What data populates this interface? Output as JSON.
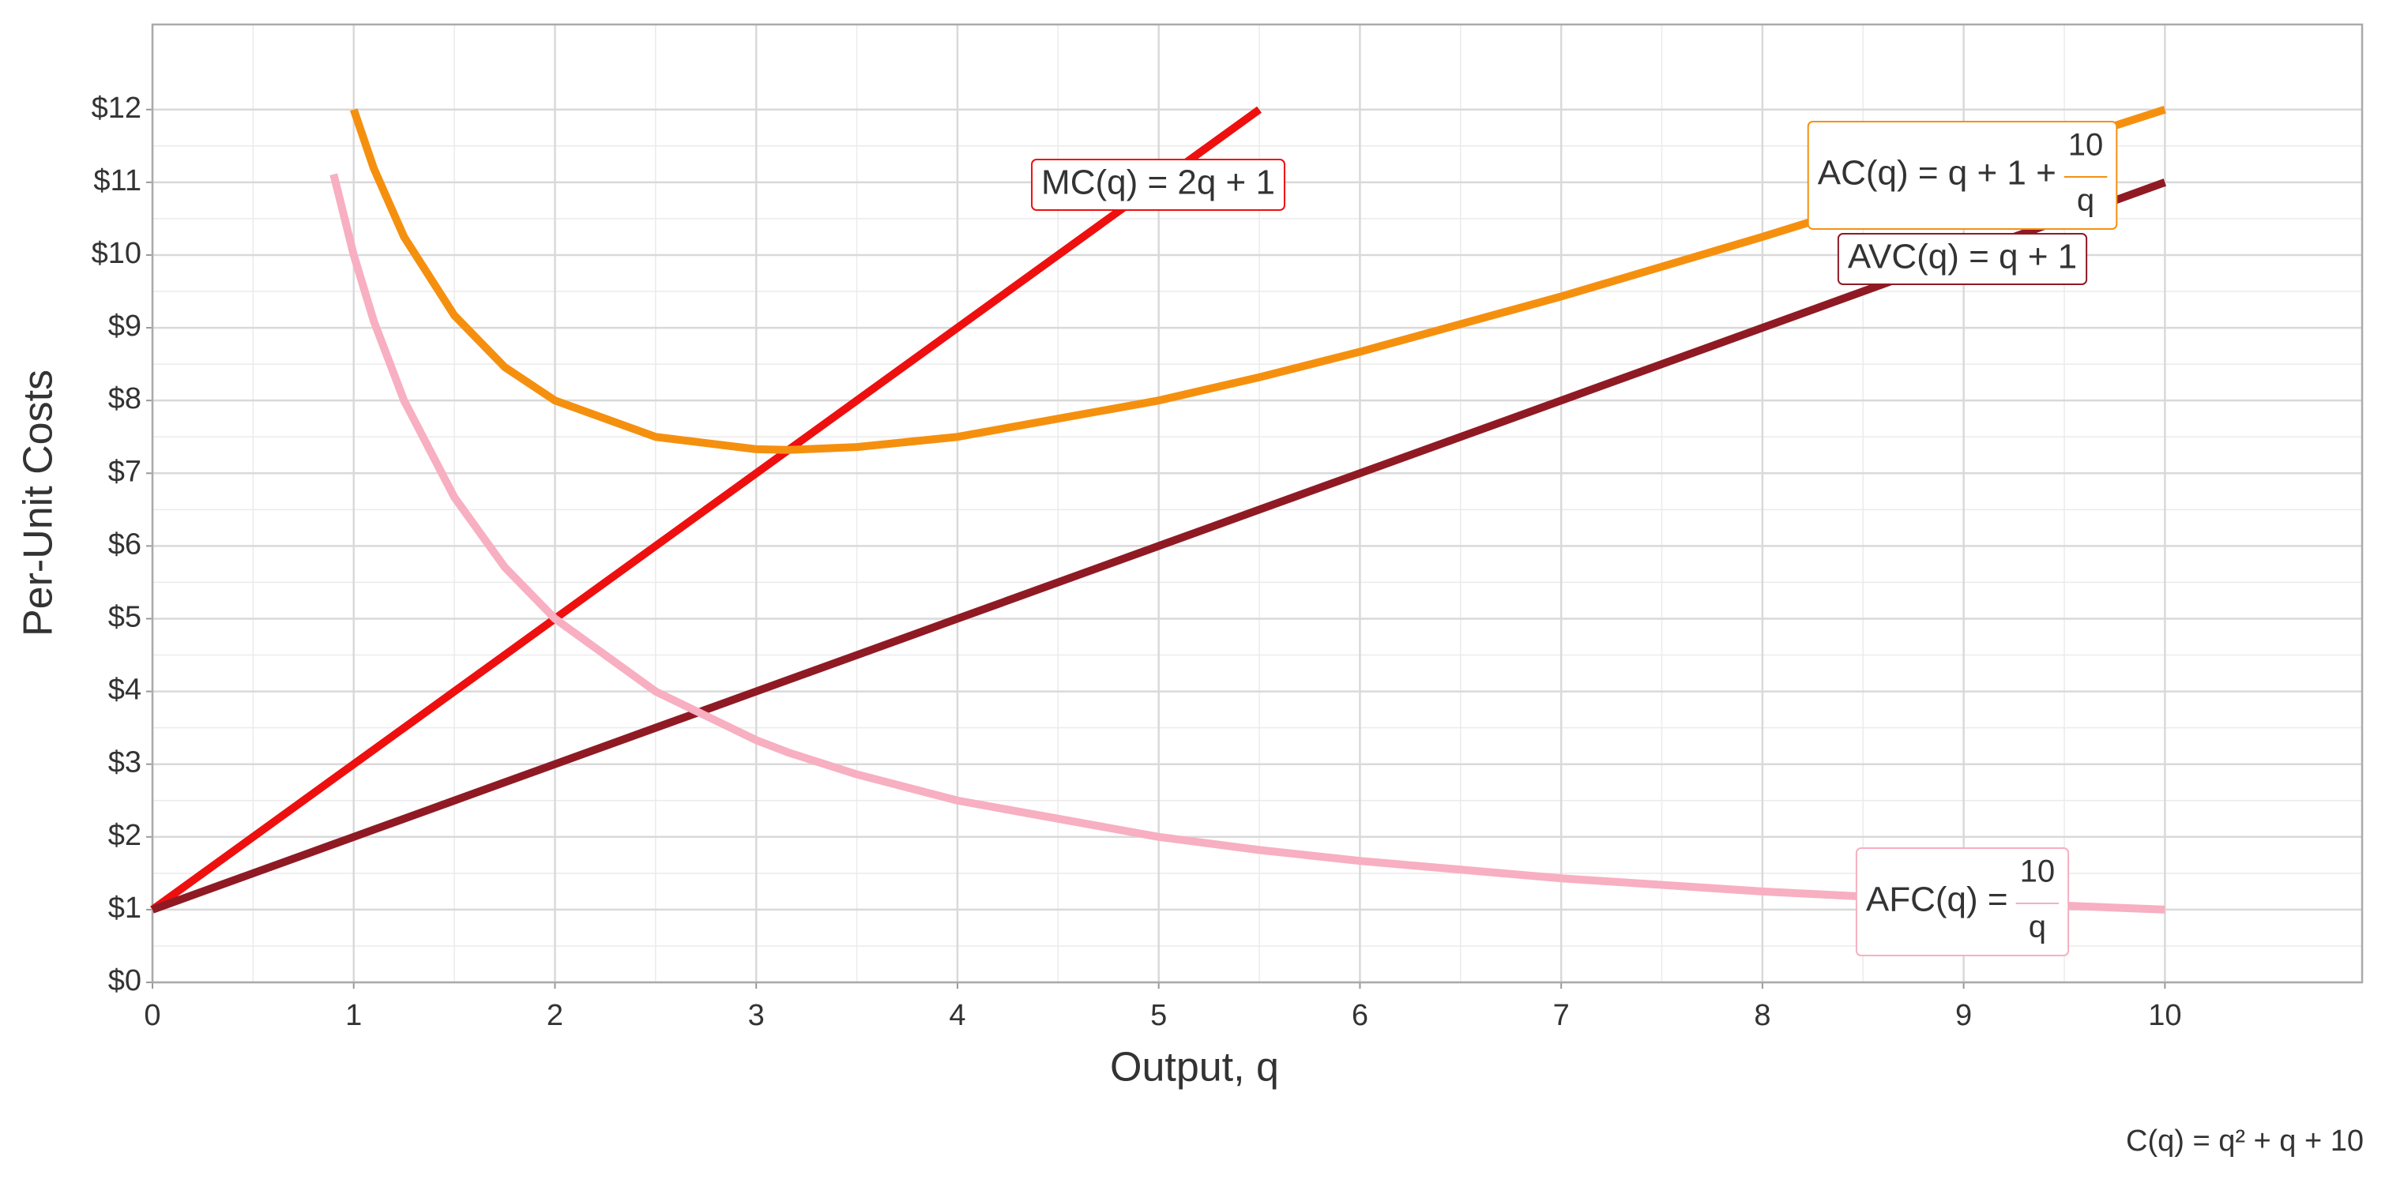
{
  "chart_data": {
    "type": "line",
    "x_label": "Output, q",
    "y_label": "Per-Unit Costs",
    "caption": "C(q) = q² + q + 10",
    "x": [
      0,
      0.9,
      1,
      1.1,
      1.25,
      1.5,
      1.75,
      2,
      2.5,
      3,
      3.16,
      3.5,
      4,
      5,
      5.5,
      6,
      7,
      8,
      9,
      10
    ],
    "series": [
      {
        "name": "MC",
        "color": "#ee0f0f",
        "values": [
          1,
          2.8,
          3,
          3.2,
          3.5,
          4,
          4.5,
          5,
          6,
          7,
          7.32,
          8,
          9,
          11,
          12,
          null,
          null,
          null,
          null,
          null
        ]
      },
      {
        "name": "AC",
        "color": "#f5900f",
        "values": [
          null,
          null,
          12,
          11.19,
          10.25,
          9.17,
          8.46,
          8,
          7.5,
          7.33,
          7.32,
          7.36,
          7.5,
          8,
          8.32,
          8.67,
          9.43,
          10.25,
          11.11,
          12
        ]
      },
      {
        "name": "AVC",
        "color": "#8f1a24",
        "values": [
          1,
          1.9,
          2,
          2.1,
          2.25,
          2.5,
          2.75,
          3,
          3.5,
          4,
          4.16,
          4.5,
          5,
          6,
          6.5,
          7,
          8,
          9,
          10,
          11
        ]
      },
      {
        "name": "AFC",
        "color": "#f7afc1",
        "values": [
          null,
          11.11,
          10,
          9.09,
          8,
          6.67,
          5.71,
          5,
          4,
          3.33,
          3.16,
          2.86,
          2.5,
          2,
          1.82,
          1.67,
          1.43,
          1.25,
          1.11,
          1
        ]
      }
    ],
    "annotations": [
      {
        "text": "MC(q) = 2q + 1"
      },
      {
        "text": "AC(q) = q + 1 +",
        "numerator": "10",
        "denominator": "q"
      },
      {
        "text": "AVC(q) = q + 1"
      },
      {
        "text": "AFC(q) =",
        "numerator": "10",
        "denominator": "q"
      }
    ],
    "xlim": [
      0,
      10.98
    ],
    "ylim": [
      0,
      13.17
    ],
    "xticks": [
      0,
      1,
      2,
      3,
      4,
      5,
      6,
      7,
      8,
      9,
      10
    ],
    "yticks": [
      {
        "value": 0,
        "label": "$0"
      },
      {
        "value": 1,
        "label": "$1"
      },
      {
        "value": 2,
        "label": "$2"
      },
      {
        "value": 3,
        "label": "$3"
      },
      {
        "value": 4,
        "label": "$4"
      },
      {
        "value": 5,
        "label": "$5"
      },
      {
        "value": 6,
        "label": "$6"
      },
      {
        "value": 7,
        "label": "$7"
      },
      {
        "value": 8,
        "label": "$8"
      },
      {
        "value": 9,
        "label": "$9"
      },
      {
        "value": 10,
        "label": "$10"
      },
      {
        "value": 11,
        "label": "$11"
      },
      {
        "value": 12,
        "label": "$12"
      }
    ],
    "grid": true,
    "minor_grid": true
  }
}
